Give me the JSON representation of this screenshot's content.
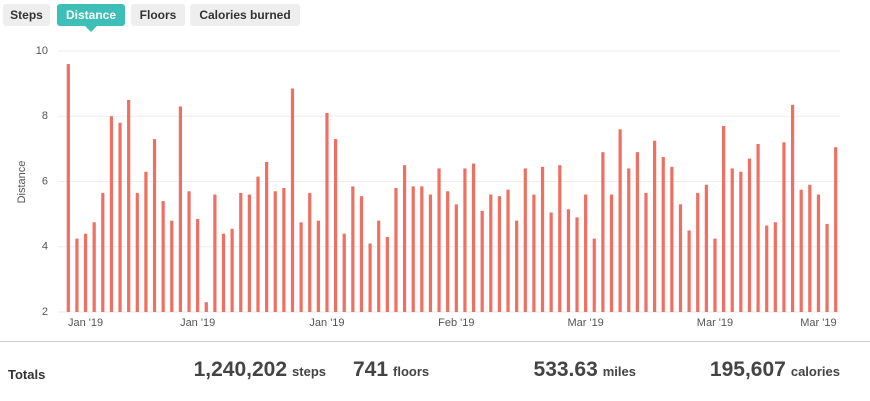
{
  "tabs": [
    "Steps",
    "Distance",
    "Floors",
    "Calories burned"
  ],
  "chart_data": {
    "type": "bar",
    "ylabel": "Distance",
    "color": "#ef6f62",
    "categories": [
      null,
      null,
      "Jan '19",
      null,
      null,
      null,
      null,
      null,
      null,
      null,
      null,
      null,
      null,
      null,
      null,
      "Jan '19",
      null,
      null,
      null,
      null,
      null,
      null,
      null,
      null,
      null,
      null,
      null,
      null,
      null,
      null,
      "Jan '19",
      null,
      null,
      null,
      null,
      null,
      null,
      null,
      null,
      null,
      null,
      null,
      null,
      null,
      null,
      "Feb '19",
      null,
      null,
      null,
      null,
      null,
      null,
      null,
      null,
      null,
      null,
      null,
      null,
      null,
      null,
      "Mar '19",
      null,
      null,
      null,
      null,
      null,
      null,
      null,
      null,
      null,
      null,
      null,
      null,
      null,
      null,
      "Mar '19",
      null,
      null,
      null,
      null,
      null,
      null,
      null,
      null,
      null,
      null,
      null,
      "Mar '19",
      null,
      null
    ],
    "values": [
      9.6,
      4.25,
      4.4,
      4.75,
      5.65,
      8.0,
      7.8,
      8.5,
      5.65,
      6.3,
      7.3,
      5.4,
      4.8,
      8.3,
      5.7,
      4.85,
      2.3,
      5.6,
      4.4,
      4.55,
      5.65,
      5.6,
      6.15,
      6.6,
      5.7,
      5.8,
      8.85,
      4.75,
      5.65,
      4.8,
      8.1,
      7.3,
      4.4,
      5.85,
      5.55,
      4.1,
      4.8,
      4.3,
      5.8,
      6.5,
      5.85,
      5.85,
      5.6,
      6.4,
      5.7,
      5.3,
      6.4,
      6.55,
      5.1,
      5.6,
      5.55,
      5.75,
      4.8,
      6.4,
      5.6,
      6.45,
      5.05,
      6.5,
      5.15,
      4.9,
      5.6,
      4.25,
      6.9,
      5.6,
      7.6,
      6.4,
      6.9,
      5.65,
      7.25,
      6.75,
      6.45,
      5.3,
      4.5,
      5.65,
      5.9,
      4.25,
      7.7,
      6.4,
      6.3,
      6.7,
      7.15,
      4.65,
      4.75,
      7.2,
      8.35,
      5.75,
      5.9,
      5.6,
      4.7,
      7.05
    ],
    "ylim": [
      2,
      10
    ],
    "yticks": [
      2,
      4,
      6,
      8,
      10
    ],
    "grid": true
  },
  "totals": {
    "label": "Totals",
    "items": [
      {
        "value": "1,240,202",
        "unit": "steps"
      },
      {
        "value": "741",
        "unit": "floors"
      },
      {
        "value": "533.63",
        "unit": "miles"
      },
      {
        "value": "195,607",
        "unit": "calories"
      }
    ]
  }
}
